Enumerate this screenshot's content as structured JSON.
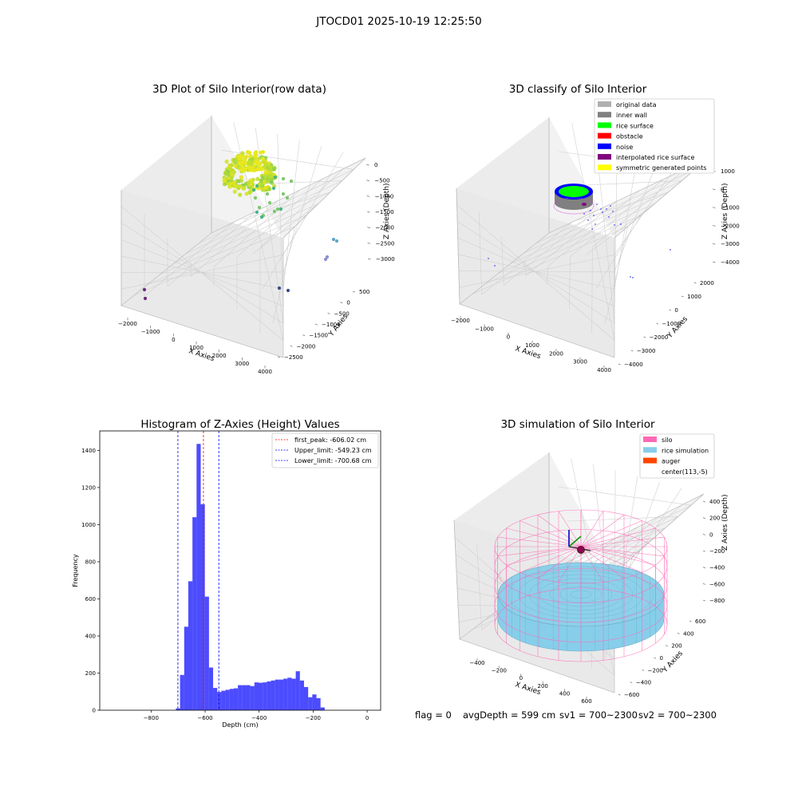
{
  "suptitle": "JTOCD01 2025-10-19 12:25:50",
  "footer": {
    "flag": "flag = 0",
    "avg_depth": "avgDepth = 599 cm",
    "sv1": "sv1 = 700~2300",
    "sv2": "sv2 = 700~2300"
  },
  "chart_data": [
    {
      "type": "scatter",
      "title": "3D Plot of Silo Interior(row data)",
      "xlabel": "X Axies",
      "ylabel": "Y Axies",
      "zlabel": "Z Axies (Depth)",
      "x_ticks": [
        "−2000",
        "−1000",
        "0",
        "1000",
        "2000",
        "3000",
        "4000"
      ],
      "y_ticks": [
        "500",
        "0",
        "−500",
        "−1000",
        "−1500",
        "−2000",
        "−2500"
      ],
      "z_ticks": [
        "0",
        "−500",
        "−1000",
        "−1500",
        "−2000",
        "−2500",
        "−3000"
      ]
    },
    {
      "type": "scatter",
      "title": "3D classify of Silo Interior",
      "xlabel": "X Axies",
      "ylabel": "Y Axies",
      "zlabel": "Z Axies (Depth)",
      "x_ticks": [
        "−2000",
        "−1000",
        "0",
        "1000",
        "2000",
        "3000",
        "4000"
      ],
      "y_ticks": [
        "2000",
        "1000",
        "0",
        "−1000",
        "−2000",
        "−3000",
        "−4000"
      ],
      "z_ticks": [
        "1000",
        "0",
        "−1000",
        "−2000",
        "−3000",
        "−4000"
      ],
      "legend": [
        {
          "label": "original data",
          "color": "#b0b0b0"
        },
        {
          "label": "inner wall",
          "color": "#808080"
        },
        {
          "label": "rice surface",
          "color": "#00ff00"
        },
        {
          "label": "obstacle",
          "color": "#ff0000"
        },
        {
          "label": "noise",
          "color": "#0000ff"
        },
        {
          "label": "interpolated rice surface",
          "color": "#800080"
        },
        {
          "label": "symmetric generated points",
          "color": "#ffff00"
        }
      ]
    },
    {
      "type": "bar",
      "title": "Histogram of Z-Axies (Height) Values",
      "xlabel": "Depth (cm)",
      "ylabel": "Frequency",
      "xlim": [
        -990,
        50
      ],
      "ylim": [
        0,
        1505
      ],
      "x_ticks": [
        -800,
        -600,
        -400,
        -200,
        0
      ],
      "x_tick_labels": [
        "−800",
        "−600",
        "−400",
        "−200",
        "0"
      ],
      "y_ticks": [
        0,
        200,
        400,
        600,
        800,
        1000,
        1200,
        1400
      ],
      "bin_start": -708,
      "bin_width": 15.3,
      "values": [
        10,
        190,
        450,
        695,
        1040,
        1435,
        1110,
        612,
        230,
        120,
        98,
        105,
        110,
        115,
        118,
        135,
        135,
        135,
        130,
        150,
        148,
        150,
        155,
        160,
        165,
        165,
        170,
        175,
        170,
        210,
        160,
        125,
        70,
        85,
        65,
        15
      ],
      "bar_color": "#0000ff",
      "vlines": [
        {
          "name": "first_peak",
          "label": "first_peak: -606.02 cm",
          "x": -606.02,
          "color": "#ff0000"
        },
        {
          "name": "Upper_limit",
          "label": "Upper_limit: -549.23 cm",
          "x": -549.23,
          "color": "#0000ff"
        },
        {
          "name": "Lower_limit",
          "label": "Lower_limit: -700.68 cm",
          "x": -700.68,
          "color": "#0000ff"
        }
      ]
    },
    {
      "type": "scatter",
      "title": "3D simulation of Silo Interior",
      "xlabel": "X Axies",
      "ylabel": "Y Axies",
      "zlabel": "Z Axies (Depth)",
      "x_ticks": [
        "−400",
        "−200",
        "0",
        "200",
        "400",
        "600"
      ],
      "y_ticks": [
        "600",
        "400",
        "200",
        "0",
        "−200",
        "−400",
        "−600"
      ],
      "z_ticks": [
        "400",
        "200",
        "0",
        "−200",
        "−400",
        "−600",
        "−800"
      ],
      "legend": [
        {
          "label": "silo",
          "color": "#ff69b4"
        },
        {
          "label": "rice simulation",
          "color": "#87ceeb"
        },
        {
          "label": "auger",
          "color": "#ff4500"
        },
        {
          "label": "center(113,-5)",
          "color": ""
        }
      ]
    }
  ]
}
